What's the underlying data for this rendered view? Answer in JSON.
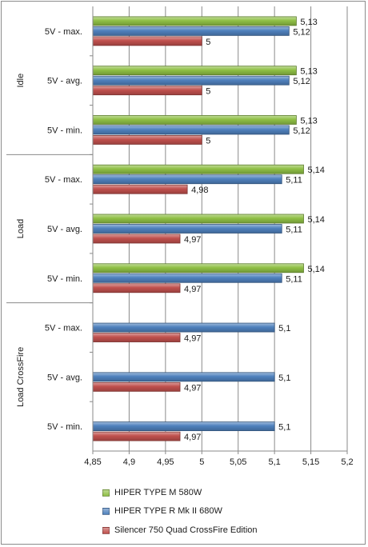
{
  "chart_data": {
    "type": "bar",
    "orientation": "horizontal",
    "groups": [
      {
        "name": "Idle",
        "categories": [
          "5V - max.",
          "5V - avg.",
          "5V - min."
        ]
      },
      {
        "name": "Load",
        "categories": [
          "5V - max.",
          "5V - avg.",
          "5V - min."
        ]
      },
      {
        "name": "Load CrossFire",
        "categories": [
          "5V - max.",
          "5V - avg.",
          "5V - min."
        ]
      }
    ],
    "series": [
      {
        "name": "HIPER TYPE  M 580W",
        "color": "#8fbf45",
        "values": [
          5.13,
          5.13,
          5.13,
          5.14,
          5.14,
          5.14,
          null,
          null,
          null
        ],
        "labels": [
          "5,13",
          "5,13",
          "5,13",
          "5,14",
          "5,14",
          "5,14",
          "",
          "",
          ""
        ]
      },
      {
        "name": "HIPER TYPE  R Mk II 680W",
        "color": "#4f81bd",
        "values": [
          5.12,
          5.12,
          5.12,
          5.11,
          5.11,
          5.11,
          5.1,
          5.1,
          5.1
        ],
        "labels": [
          "5,12",
          "5,12",
          "5,12",
          "5,11",
          "5,11",
          "5,11",
          "5,1",
          "5,1",
          "5,1"
        ]
      },
      {
        "name": "Silencer 750 Quad CrossFire Edition",
        "color": "#c0504d",
        "values": [
          5,
          5,
          5,
          4.98,
          4.97,
          4.97,
          4.97,
          4.97,
          4.97
        ],
        "labels": [
          "5",
          "5",
          "5",
          "4,98",
          "4,97",
          "4,97",
          "4,97",
          "4,97",
          "4,97"
        ]
      }
    ],
    "xlim": [
      4.85,
      5.2
    ],
    "x_ticks": [
      "4,85",
      "4,9",
      "4,95",
      "5",
      "5,05",
      "5,1",
      "5,15",
      "5,2"
    ],
    "gridlines": true,
    "legend_position": "bottom"
  }
}
